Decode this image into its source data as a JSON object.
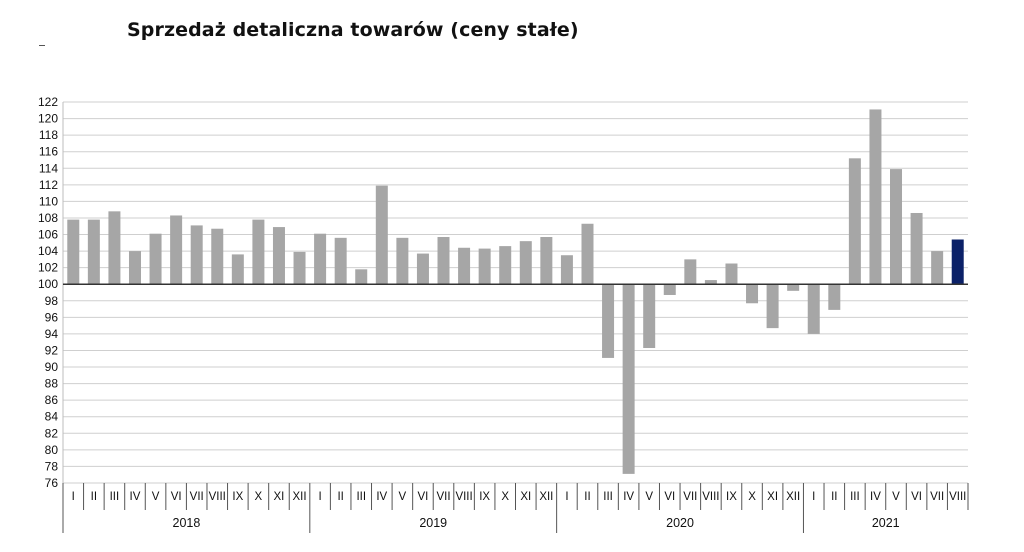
{
  "chart_data": {
    "type": "bar",
    "title": "Sprzedaż detaliczna towarów (ceny stałe)",
    "xlabel": "",
    "ylabel": "",
    "ylim": [
      76,
      122
    ],
    "yticks": [
      76,
      78,
      80,
      82,
      84,
      86,
      88,
      90,
      92,
      94,
      96,
      98,
      100,
      102,
      104,
      106,
      108,
      110,
      112,
      114,
      116,
      118,
      120,
      122
    ],
    "baseline": 100,
    "grid": true,
    "legend": "none",
    "years": [
      {
        "label": "2018",
        "count": 12
      },
      {
        "label": "2019",
        "count": 12
      },
      {
        "label": "2020",
        "count": 12
      },
      {
        "label": "2021",
        "count": 8
      }
    ],
    "categories": [
      "I",
      "II",
      "III",
      "IV",
      "V",
      "VI",
      "VII",
      "VIII",
      "IX",
      "X",
      "XI",
      "XII",
      "I",
      "II",
      "III",
      "IV",
      "V",
      "VI",
      "VII",
      "VIII",
      "IX",
      "X",
      "XI",
      "XII",
      "I",
      "II",
      "III",
      "IV",
      "V",
      "VI",
      "VII",
      "VIII",
      "IX",
      "X",
      "XI",
      "XII",
      "I",
      "II",
      "III",
      "IV",
      "V",
      "VI",
      "VII",
      "VIII"
    ],
    "values": [
      107.8,
      107.8,
      108.8,
      104.0,
      106.1,
      108.3,
      107.1,
      106.7,
      103.6,
      107.8,
      106.9,
      103.9,
      106.1,
      105.6,
      101.8,
      111.9,
      105.6,
      103.7,
      105.7,
      104.4,
      104.3,
      104.6,
      105.2,
      105.7,
      103.5,
      107.3,
      91.1,
      77.1,
      92.3,
      98.7,
      103.0,
      100.5,
      102.5,
      97.7,
      94.7,
      99.2,
      94.0,
      96.9,
      115.2,
      121.1,
      113.9,
      108.6,
      104.0,
      105.4
    ],
    "colors": {
      "bar": "#a6a6a6",
      "highlight": "#0b2168",
      "grid": "#cfcfcf",
      "axis": "#333333"
    },
    "highlight_index": 43
  }
}
